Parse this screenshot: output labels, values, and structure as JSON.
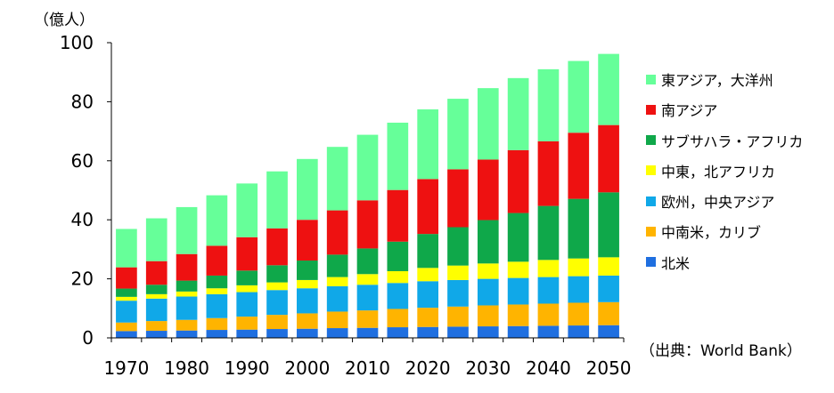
{
  "chart_data": {
    "type": "bar",
    "stacked": true,
    "unit_label": "（億人）",
    "source_note": "（出典：World Bank）",
    "categories": [
      "1970",
      "1975",
      "1980",
      "1985",
      "1990",
      "1995",
      "2000",
      "2005",
      "2010",
      "2015",
      "2020",
      "2025",
      "2030",
      "2035",
      "2040",
      "2045",
      "2050"
    ],
    "x_tick_labels": [
      "1970",
      "1980",
      "1990",
      "2000",
      "2010",
      "2020",
      "2030",
      "2040",
      "2050"
    ],
    "ylim": [
      0,
      100
    ],
    "y_ticks": [
      0,
      20,
      40,
      60,
      80,
      100
    ],
    "grid": false,
    "legend_position": "right",
    "series": [
      {
        "name": "北米",
        "color": "#1f6fe0",
        "values": [
          2.3,
          2.4,
          2.5,
          2.7,
          2.8,
          3.0,
          3.1,
          3.3,
          3.4,
          3.6,
          3.7,
          3.8,
          3.9,
          4.0,
          4.1,
          4.2,
          4.3
        ]
      },
      {
        "name": "中南米，カリブ",
        "color": "#ffb400",
        "values": [
          2.9,
          3.3,
          3.6,
          4.0,
          4.4,
          4.8,
          5.2,
          5.6,
          5.9,
          6.2,
          6.5,
          6.8,
          7.1,
          7.3,
          7.5,
          7.7,
          7.8
        ]
      },
      {
        "name": "欧州，中央アジア",
        "color": "#10a8e8",
        "values": [
          7.4,
          7.6,
          7.9,
          8.1,
          8.3,
          8.4,
          8.5,
          8.6,
          8.7,
          8.8,
          9.0,
          9.0,
          9.0,
          9.0,
          9.0,
          9.0,
          9.0
        ]
      },
      {
        "name": "中東，北アフリカ",
        "color": "#ffff00",
        "values": [
          1.3,
          1.5,
          1.7,
          2.0,
          2.3,
          2.6,
          2.8,
          3.1,
          3.6,
          4.0,
          4.5,
          4.9,
          5.2,
          5.5,
          5.8,
          6.0,
          6.2
        ]
      },
      {
        "name": "サブサハラ・アフリカ",
        "color": "#0fa84a",
        "values": [
          2.8,
          3.2,
          3.7,
          4.3,
          5.0,
          5.8,
          6.6,
          7.6,
          8.7,
          10.0,
          11.5,
          13.0,
          14.7,
          16.5,
          18.3,
          20.2,
          22.0
        ]
      },
      {
        "name": "南アジア",
        "color": "#ee1111",
        "values": [
          7.2,
          8.0,
          9.0,
          10.1,
          11.3,
          12.5,
          13.8,
          15.0,
          16.3,
          17.5,
          18.6,
          19.6,
          20.5,
          21.3,
          21.9,
          22.4,
          22.8
        ]
      },
      {
        "name": "東アジア，大洋州",
        "color": "#66ff99",
        "values": [
          13.0,
          14.5,
          15.9,
          17.1,
          18.2,
          19.3,
          20.6,
          21.5,
          22.2,
          22.8,
          23.6,
          23.9,
          24.2,
          24.4,
          24.4,
          24.3,
          24.1
        ]
      }
    ]
  }
}
